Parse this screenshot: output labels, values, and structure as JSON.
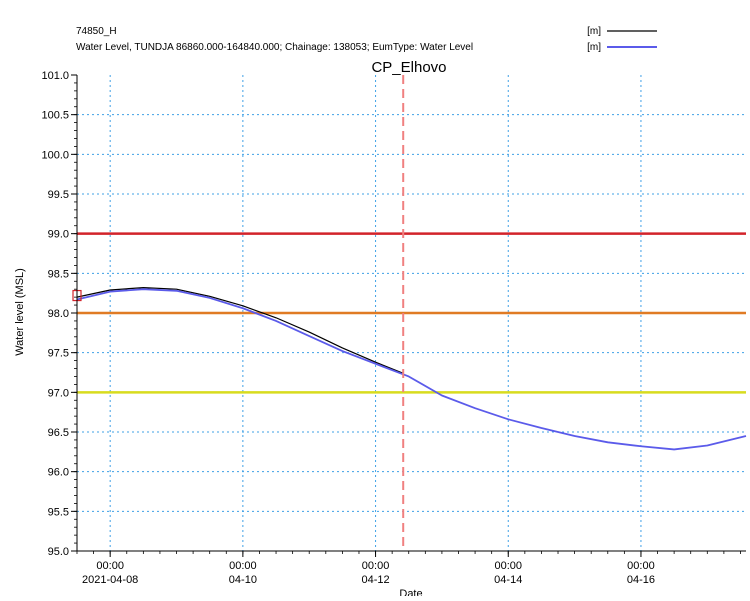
{
  "chart_data": {
    "type": "line",
    "title": "CP_Elhovo",
    "xlabel": "Date",
    "ylabel": "Water level (MSL)",
    "xlim": [
      "2021-04-07T12:00",
      "2021-04-17T14:00"
    ],
    "ylim": [
      95.0,
      101.0
    ],
    "grid": true,
    "legend_position": "top-right",
    "y_ticks": [
      "95.0",
      "95.5",
      "96.0",
      "96.5",
      "97.0",
      "97.5",
      "98.0",
      "98.5",
      "99.0",
      "99.5",
      "100.0",
      "100.5",
      "101.0"
    ],
    "x_ticks": [
      {
        "x": "2021-04-08T00:00",
        "time": "00:00",
        "date": "2021-04-08"
      },
      {
        "x": "2021-04-10T00:00",
        "time": "00:00",
        "date": "04-10"
      },
      {
        "x": "2021-04-12T00:00",
        "time": "00:00",
        "date": "04-12"
      },
      {
        "x": "2021-04-14T00:00",
        "time": "00:00",
        "date": "04-14"
      },
      {
        "x": "2021-04-16T00:00",
        "time": "00:00",
        "date": "04-16"
      }
    ],
    "series": [
      {
        "name": "74850_H",
        "unit": "[m]",
        "color": "#000000",
        "x": [
          "2021-04-07T12:00",
          "2021-04-08T00:00",
          "2021-04-08T12:00",
          "2021-04-09T00:00",
          "2021-04-09T12:00",
          "2021-04-10T00:00",
          "2021-04-10T12:00",
          "2021-04-11T00:00",
          "2021-04-11T12:00",
          "2021-04-12T00:00",
          "2021-04-12T10:00"
        ],
        "values": [
          98.2,
          98.29,
          98.32,
          98.3,
          98.21,
          98.09,
          97.94,
          97.76,
          97.56,
          97.38,
          97.24
        ]
      },
      {
        "name": "Water Level, TUNDJA 86860.000-164840.000; Chainage: 138053; EumType: Water Level",
        "unit": "[m]",
        "color": "#5b5bea",
        "x": [
          "2021-04-07T12:00",
          "2021-04-08T00:00",
          "2021-04-08T12:00",
          "2021-04-09T00:00",
          "2021-04-09T12:00",
          "2021-04-10T00:00",
          "2021-04-10T12:00",
          "2021-04-11T00:00",
          "2021-04-11T12:00",
          "2021-04-12T00:00",
          "2021-04-12T12:00",
          "2021-04-13T00:00",
          "2021-04-13T12:00",
          "2021-04-14T00:00",
          "2021-04-14T12:00",
          "2021-04-15T00:00",
          "2021-04-15T12:00",
          "2021-04-16T00:00",
          "2021-04-16T12:00",
          "2021-04-17T00:00",
          "2021-04-17T14:00"
        ],
        "values": [
          98.17,
          98.27,
          98.3,
          98.28,
          98.19,
          98.06,
          97.9,
          97.71,
          97.52,
          97.36,
          97.2,
          96.96,
          96.8,
          96.66,
          96.55,
          96.45,
          96.37,
          96.32,
          96.28,
          96.33,
          96.45
        ]
      }
    ],
    "reference_lines": [
      {
        "y": 99.0,
        "color": "#d2232a"
      },
      {
        "y": 98.0,
        "color": "#e07b24"
      },
      {
        "y": 97.0,
        "color": "#d8dc1e"
      }
    ],
    "time_marker": {
      "x": "2021-04-12T10:00",
      "color": "#f08080",
      "style": "dashed"
    },
    "start_marker": {
      "x": "2021-04-07T12:00",
      "y": 98.22,
      "shape": "square",
      "color": "#d2232a"
    }
  }
}
